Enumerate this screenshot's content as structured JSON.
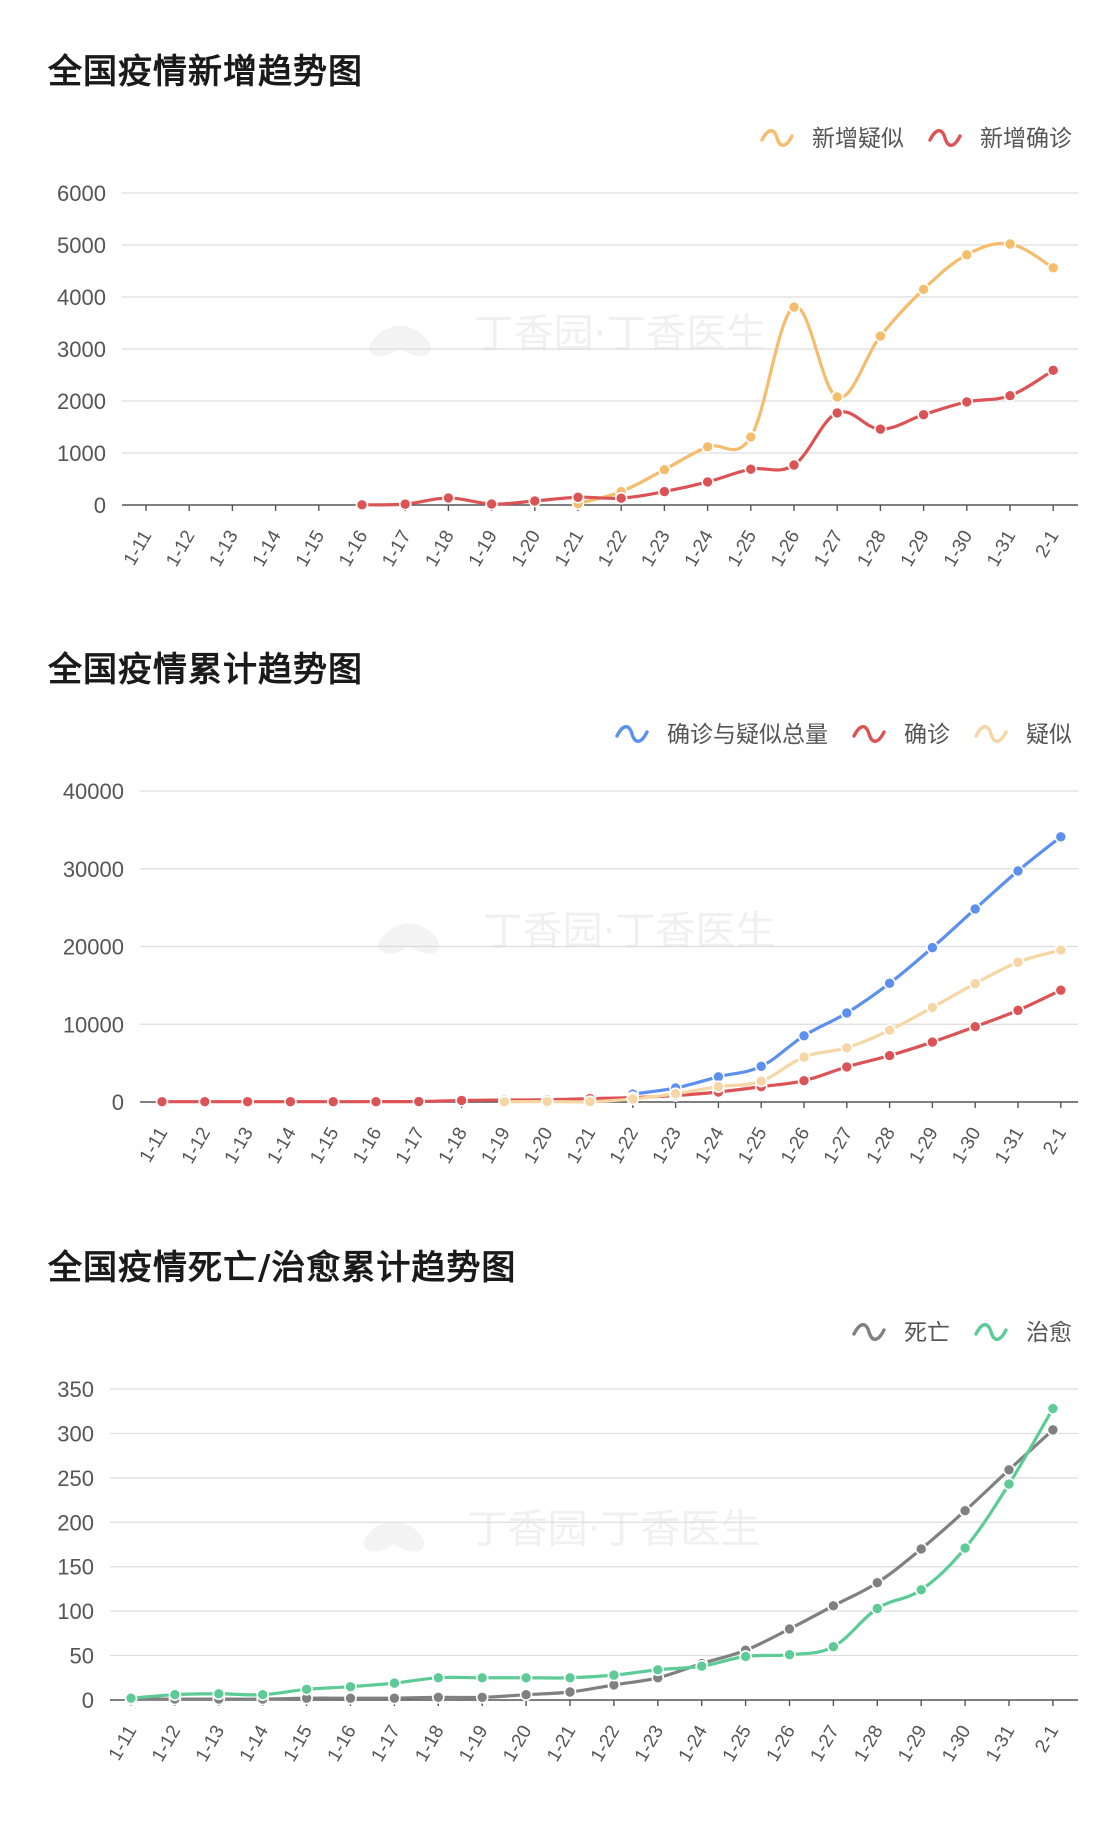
{
  "charts": [
    {
      "title": "全国疫情新增趋势图",
      "watermark": "丁香园·丁香医生",
      "chart_data": {
        "type": "line",
        "categories": [
          "1-11",
          "1-12",
          "1-13",
          "1-14",
          "1-15",
          "1-16",
          "1-17",
          "1-18",
          "1-19",
          "1-20",
          "1-21",
          "1-22",
          "1-23",
          "1-24",
          "1-25",
          "1-26",
          "1-27",
          "1-28",
          "1-29",
          "1-30",
          "1-31",
          "2-1"
        ],
        "ylim": [
          0,
          6000
        ],
        "yticks": [
          0,
          1000,
          2000,
          3000,
          4000,
          5000,
          6000
        ],
        "grid": true,
        "legend_position": "top-right",
        "series": [
          {
            "name": "新增疑似",
            "color": "#f5bc6c",
            "values": [
              null,
              null,
              null,
              null,
              null,
              null,
              null,
              null,
              null,
              null,
              27,
              257,
              680,
              1118,
              1309,
              3806,
              2077,
              3248,
              4148,
              4812,
              5019,
              4562
            ]
          },
          {
            "name": "新增确诊",
            "color": "#dc5356",
            "values": [
              null,
              null,
              null,
              null,
              null,
              4,
              17,
              136,
              19,
              77,
              149,
              131,
              259,
              444,
              688,
              769,
              1771,
              1459,
              1737,
              1982,
              2102,
              2590
            ]
          }
        ]
      }
    },
    {
      "title": "全国疫情累计趋势图",
      "watermark": "丁香园·丁香医生",
      "chart_data": {
        "type": "line",
        "categories": [
          "1-11",
          "1-12",
          "1-13",
          "1-14",
          "1-15",
          "1-16",
          "1-17",
          "1-18",
          "1-19",
          "1-20",
          "1-21",
          "1-22",
          "1-23",
          "1-24",
          "1-25",
          "1-26",
          "1-27",
          "1-28",
          "1-29",
          "1-30",
          "1-31",
          "2-1"
        ],
        "ylim": [
          0,
          40000
        ],
        "yticks": [
          0,
          10000,
          20000,
          30000,
          40000
        ],
        "grid": true,
        "legend_position": "top-right",
        "series": [
          {
            "name": "确诊与疑似总量",
            "color": "#5b8ff0",
            "values": [
              null,
              null,
              null,
              null,
              null,
              null,
              null,
              null,
              null,
              null,
              null,
              1024,
              1802,
              3245,
              4584,
              8514,
              11453,
              15264,
              19855,
              24827,
              29724,
              34107
            ]
          },
          {
            "name": "确诊",
            "color": "#dc5356",
            "values": [
              41,
              41,
              41,
              41,
              41,
              45,
              62,
              198,
              258,
              291,
              440,
              571,
              830,
              1287,
              1975,
              2744,
              4515,
              5974,
              7711,
              9692,
              11791,
              14380
            ]
          },
          {
            "name": "疑似",
            "color": "#f6d6a4",
            "values": [
              null,
              null,
              null,
              null,
              null,
              null,
              null,
              null,
              27,
              54,
              37,
              393,
              1072,
              1965,
              2684,
              5794,
              6973,
              9239,
              12167,
              15238,
              17988,
              19544
            ]
          }
        ]
      }
    },
    {
      "title": "全国疫情死亡/治愈累计趋势图",
      "watermark": "丁香园·丁香医生",
      "chart_data": {
        "type": "line",
        "categories": [
          "1-11",
          "1-12",
          "1-13",
          "1-14",
          "1-15",
          "1-16",
          "1-17",
          "1-18",
          "1-19",
          "1-20",
          "1-21",
          "1-22",
          "1-23",
          "1-24",
          "1-25",
          "1-26",
          "1-27",
          "1-28",
          "1-29",
          "1-30",
          "1-31",
          "2-1"
        ],
        "ylim": [
          0,
          350
        ],
        "yticks": [
          0,
          50,
          100,
          150,
          200,
          250,
          300,
          350
        ],
        "grid": true,
        "legend_position": "top-right",
        "series": [
          {
            "name": "死亡",
            "color": "#808080",
            "values": [
              1,
              1,
              1,
              1,
              2,
              2,
              2,
              3,
              3,
              6,
              9,
              17,
              25,
              41,
              56,
              80,
              106,
              132,
              170,
              213,
              259,
              304
            ]
          },
          {
            "name": "治愈",
            "color": "#5ccb96",
            "values": [
              2,
              6,
              7,
              6,
              12,
              15,
              19,
              25,
              25,
              25,
              25,
              28,
              34,
              38,
              49,
              51,
              60,
              103,
              124,
              171,
              243,
              328
            ]
          }
        ]
      }
    }
  ]
}
